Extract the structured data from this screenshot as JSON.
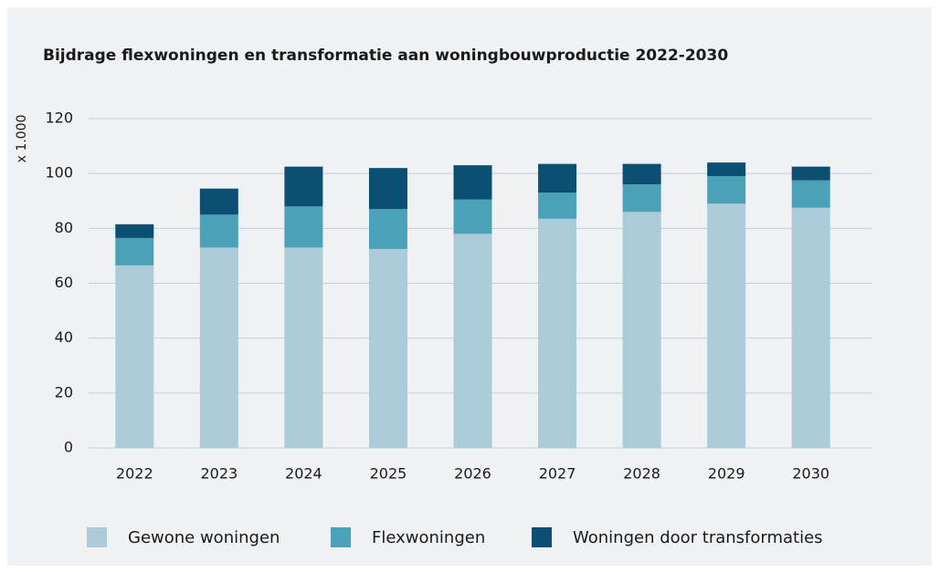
{
  "chart_data": {
    "type": "bar",
    "stacked": true,
    "title": "Bijdrage flexwoningen en transformatie aan woningbouwproductie 2022-2030",
    "y_label": "x 1.000",
    "categories": [
      "2022",
      "2023",
      "2024",
      "2025",
      "2026",
      "2027",
      "2028",
      "2029",
      "2030"
    ],
    "series": [
      {
        "name": "Gewone woningen",
        "color": "#abcbd8",
        "values": [
          66.5,
          73,
          73,
          72.5,
          78,
          83.5,
          86,
          89,
          87.5
        ]
      },
      {
        "name": "Flexwoningen",
        "color": "#4aa1b8",
        "values": [
          10,
          12,
          15,
          14.5,
          12.5,
          9.5,
          10,
          10,
          10
        ]
      },
      {
        "name": "Woningen door transformaties",
        "color": "#0b4f73",
        "values": [
          5,
          9.5,
          14.5,
          15,
          12.5,
          10.5,
          7.5,
          5,
          5
        ]
      }
    ],
    "ylim": [
      0,
      120
    ],
    "yticks": [
      0,
      20,
      40,
      60,
      80,
      100,
      120
    ],
    "grid": true,
    "legend": "bottom"
  }
}
